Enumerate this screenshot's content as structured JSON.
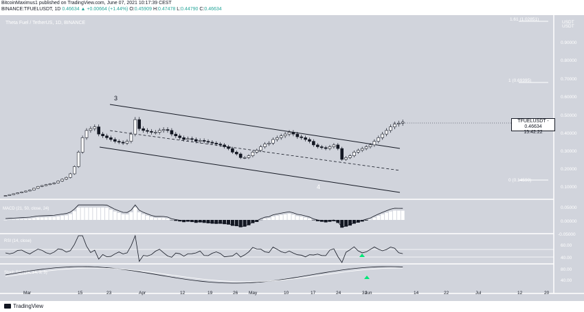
{
  "header": {
    "publish_line": "BitcoinMaximus1 published on TradingView.com, June 07, 2021 10:17:39 CEST",
    "symbol_line": "BINANCE:TFUELUSDT, 1D",
    "open_label": "O:",
    "open": "0.45909",
    "change": "0.46634 ▲ +0.00664 (+1.44%)",
    "high_label": "H:",
    "high": "0.47478",
    "low_label": "L:",
    "low": "0.44790",
    "close_label": "C:",
    "close": "0.46634"
  },
  "chart": {
    "legend": "Theta Fuel / TetherUS, 1D, BINANCE",
    "currency": "USDT",
    "price_axis": [
      "0.90000",
      "0.80000",
      "0.70000",
      "0.60000",
      "0.50000",
      "0.40000",
      "0.30000",
      "0.20000",
      "0.10000"
    ],
    "fib_top": "1.61 (1.02851)",
    "fib_mid": "1 (0.69395)",
    "fib_bot": "0 (0.14590)",
    "wave_3": "3",
    "wave_4": "4",
    "price_tag_symbol": "TFUELUSDT",
    "price_tag_price": "0.46634",
    "price_tag_time": "15:42:22",
    "macd_label": "MACD (21, 50, close, 24)",
    "macd_axis": [
      "0.05000",
      "0.00000",
      "-0.05000"
    ],
    "rsi_label": "RSI (14, close)",
    "rsi_axis": [
      "60.00",
      "40.00"
    ],
    "stoch_label": "Stoch RSI (14, 14, 3, 3)",
    "stoch_axis": [
      "80.00",
      "40.00"
    ],
    "time_axis": [
      "Mar",
      "15",
      "23",
      "Apr",
      "12",
      "19",
      "26",
      "May",
      "10",
      "17",
      "24",
      "31",
      "Jun",
      "14",
      "22",
      "Jul",
      "12",
      "20"
    ]
  },
  "footer": {
    "brand": "TradingView"
  },
  "colors": {
    "background": "#d1d4dc",
    "panel_divider": "#ffffff",
    "candle": "#131722",
    "green_arrow": "#00e676"
  },
  "chart_data": {
    "type": "candlestick",
    "symbol": "TFUELUSDT",
    "close": [
      0.06,
      0.065,
      0.07,
      0.075,
      0.08,
      0.085,
      0.09,
      0.1,
      0.11,
      0.115,
      0.12,
      0.125,
      0.13,
      0.14,
      0.15,
      0.16,
      0.18,
      0.22,
      0.3,
      0.38,
      0.42,
      0.43,
      0.44,
      0.4,
      0.39,
      0.38,
      0.37,
      0.36,
      0.355,
      0.35,
      0.36,
      0.4,
      0.48,
      0.43,
      0.42,
      0.415,
      0.41,
      0.41,
      0.42,
      0.425,
      0.42,
      0.4,
      0.39,
      0.38,
      0.37,
      0.375,
      0.37,
      0.36,
      0.365,
      0.36,
      0.355,
      0.35,
      0.345,
      0.34,
      0.33,
      0.32,
      0.3,
      0.29,
      0.27,
      0.27,
      0.28,
      0.3,
      0.31,
      0.33,
      0.345,
      0.35,
      0.37,
      0.38,
      0.39,
      0.4,
      0.41,
      0.4,
      0.385,
      0.38,
      0.37,
      0.36,
      0.34,
      0.33,
      0.325,
      0.32,
      0.33,
      0.34,
      0.32,
      0.26,
      0.27,
      0.28,
      0.3,
      0.31,
      0.32,
      0.33,
      0.34,
      0.36,
      0.38,
      0.4,
      0.42,
      0.44,
      0.455,
      0.46,
      0.466
    ],
    "ylim": [
      0.05,
      0.95
    ]
  }
}
